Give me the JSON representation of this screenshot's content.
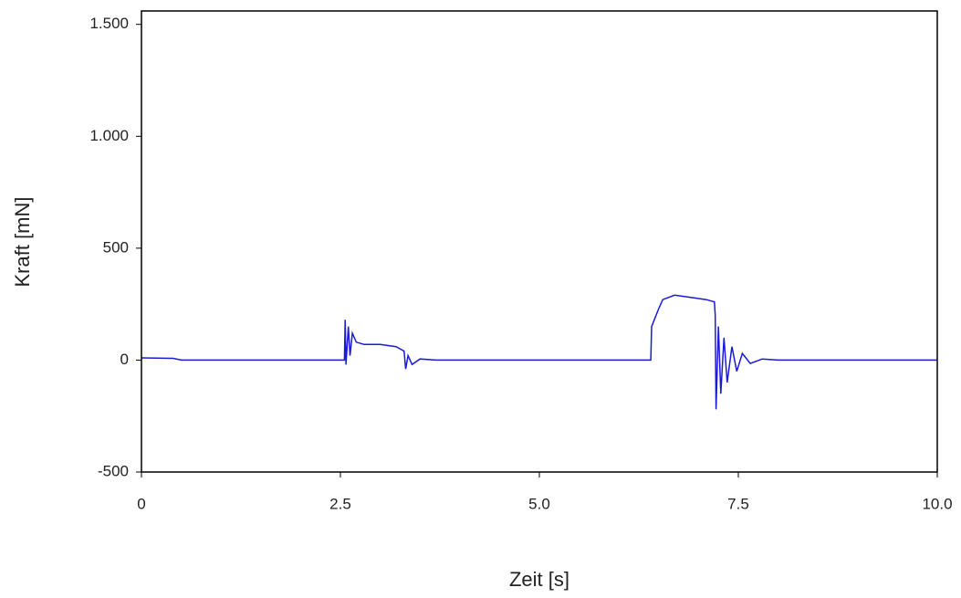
{
  "chart_data": {
    "type": "line",
    "x_label": "Zeit [s]",
    "y_label": "Kraft [mN]",
    "xlim": [
      0,
      10
    ],
    "ylim": [
      -500,
      1560
    ],
    "xticks": [
      0,
      2.5,
      {
        "value": 5,
        "label": "5.0"
      },
      7.5,
      {
        "value": 10,
        "label": "10.0"
      }
    ],
    "yticks": [
      -500,
      0,
      500,
      {
        "value": 1000,
        "label": "1.000"
      },
      {
        "value": 1500,
        "label": "1.500"
      }
    ],
    "series": [
      {
        "color": "#1a1ad8",
        "x": [
          0,
          0.4,
          0.5,
          2.55,
          2.56,
          2.57,
          2.6,
          2.62,
          2.65,
          2.7,
          2.8,
          3.0,
          3.2,
          3.3,
          3.32,
          3.35,
          3.4,
          3.5,
          3.7,
          5,
          6.4,
          6.41,
          6.5,
          6.55,
          6.7,
          6.9,
          7.1,
          7.2,
          7.21,
          7.22,
          7.25,
          7.28,
          7.32,
          7.36,
          7.42,
          7.48,
          7.55,
          7.65,
          7.8,
          8.0,
          10
        ],
        "values": [
          10,
          8,
          0,
          0,
          180,
          -20,
          150,
          20,
          120,
          80,
          70,
          70,
          60,
          40,
          -40,
          20,
          -20,
          5,
          0,
          0,
          0,
          150,
          230,
          270,
          290,
          280,
          270,
          260,
          200,
          -220,
          150,
          -150,
          100,
          -100,
          60,
          -50,
          30,
          -15,
          5,
          0,
          0
        ]
      }
    ]
  }
}
